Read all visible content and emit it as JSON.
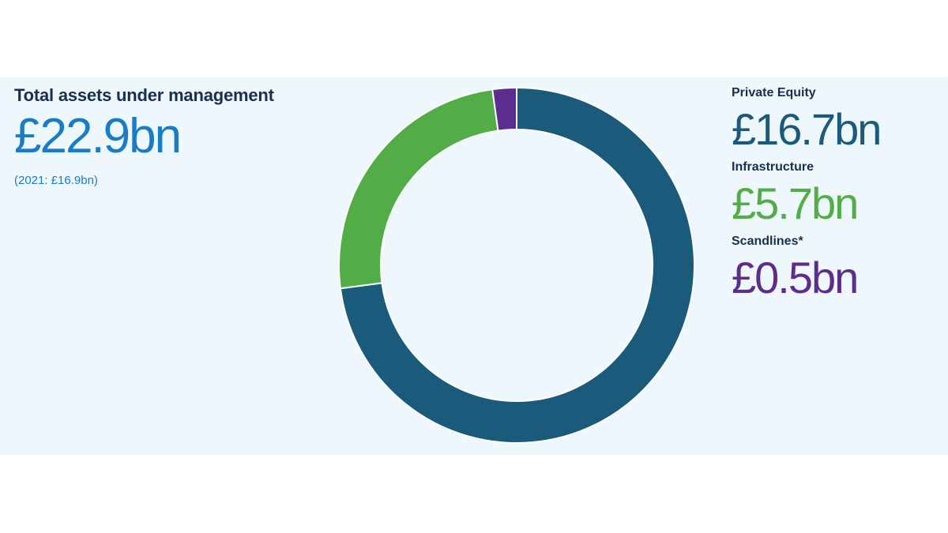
{
  "header": {
    "title": "Total assets under management",
    "value": "£22.9bn",
    "comparison": "(2021: £16.9bn)"
  },
  "legend": [
    {
      "label": "Private Equity",
      "value": "£16.7bn",
      "color": "#1a5a7a"
    },
    {
      "label": "Infrastructure",
      "value": "£5.7bn",
      "color": "#52ad46"
    },
    {
      "label": "Scandlines*",
      "value": "£0.5bn",
      "color": "#5b2d8c"
    }
  ],
  "chart_data": {
    "type": "pie",
    "donut": true,
    "title": "Total assets under management",
    "total": 22.9,
    "unit": "£bn",
    "categories": [
      "Private Equity",
      "Infrastructure",
      "Scandlines*"
    ],
    "values": [
      16.7,
      5.7,
      0.5
    ],
    "colors": [
      "#1a5a7a",
      "#52ad46",
      "#5b2d8c"
    ],
    "start": "top",
    "direction": "clockwise",
    "legend": "right"
  }
}
